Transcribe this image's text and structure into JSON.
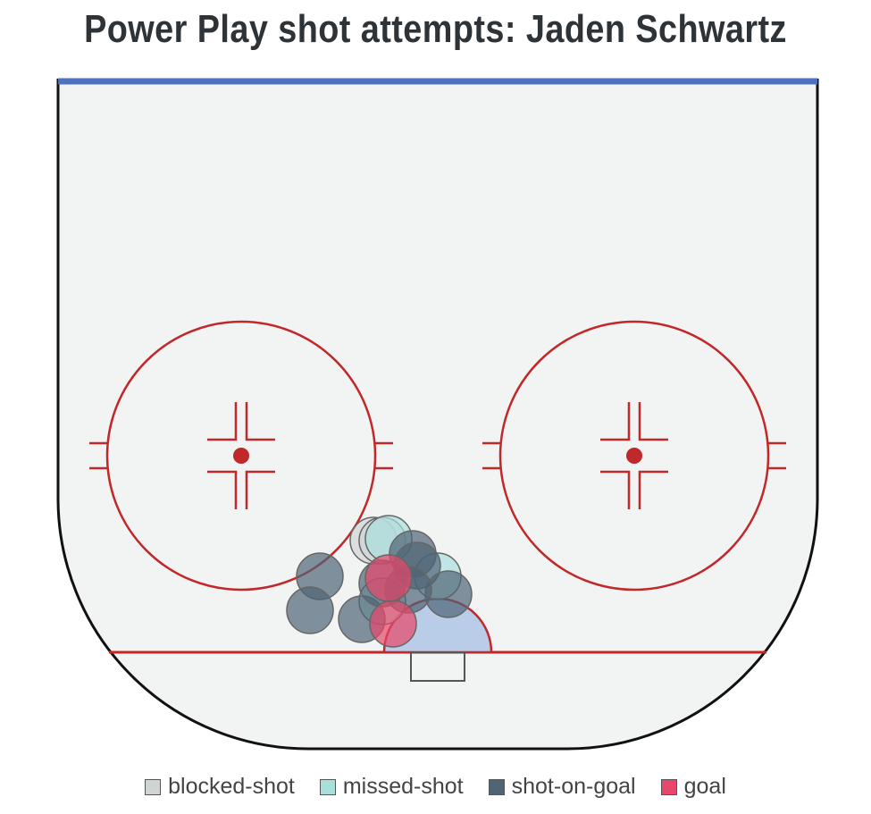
{
  "chart_data": {
    "type": "scatter",
    "title": "Power Play shot attempts: Jaden Schwartz",
    "xlim": [
      -42.5,
      42.5
    ],
    "ylim": [
      0,
      64
    ],
    "grid": false,
    "legend_placement": "bottom",
    "series": [
      {
        "name": "blocked-shot",
        "color": "#d0d4d5",
        "points": [
          [
            -7.2,
            12.5
          ],
          [
            -6.2,
            12.5
          ]
        ]
      },
      {
        "name": "missed-shot",
        "color": "#a9dedd",
        "points": [
          [
            -5.5,
            12.7
          ],
          [
            -6.2,
            5.7
          ],
          [
            0,
            8.5
          ]
        ]
      },
      {
        "name": "shot-on-goal",
        "color": "#4f6475",
        "points": [
          [
            -13.2,
            8.5
          ],
          [
            -14.3,
            4.7
          ],
          [
            -8.5,
            3.7
          ],
          [
            -6.2,
            7.7
          ],
          [
            -2.8,
            11
          ],
          [
            -2.3,
            9.7
          ],
          [
            1.2,
            6.5
          ],
          [
            -3.3,
            7
          ]
        ]
      },
      {
        "name": "goal",
        "color": "#e8466a",
        "points": [
          [
            -5,
            3.2
          ],
          [
            -5.5,
            8.3
          ]
        ]
      }
    ]
  }
}
